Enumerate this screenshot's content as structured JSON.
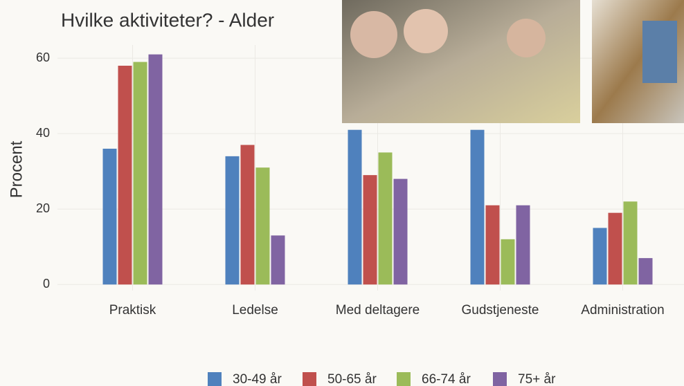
{
  "chart_data": {
    "type": "bar",
    "title": "Hvilke aktiviteter? - Alder",
    "y_label": "Procent",
    "categories": [
      "Praktisk",
      "Ledelse",
      "Med deltagere",
      "Gudstjeneste",
      "Administration"
    ],
    "series": [
      {
        "name": "30-49 år",
        "color": "#4f81bd",
        "values": [
          36,
          34,
          41,
          41,
          15
        ]
      },
      {
        "name": "50-65 år",
        "color": "#c0504d",
        "values": [
          58,
          37,
          29,
          21,
          19
        ]
      },
      {
        "name": "66-74 år",
        "color": "#9bbb59",
        "values": [
          59,
          31,
          35,
          12,
          22
        ]
      },
      {
        "name": "75+ år",
        "color": "#8064a2",
        "values": [
          61,
          13,
          28,
          21,
          7
        ]
      }
    ],
    "ylim": [
      -1.6,
      63.5
    ],
    "yticks": [
      0,
      20,
      40,
      60
    ],
    "grid": true,
    "legend": "bottom"
  }
}
